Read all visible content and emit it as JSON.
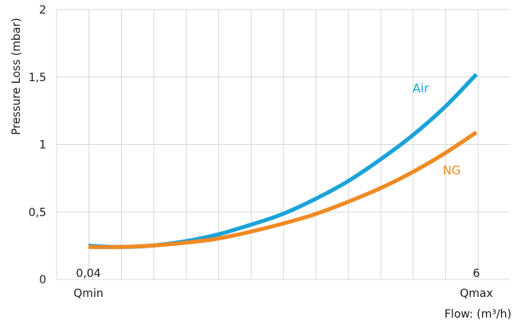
{
  "chart_data": {
    "type": "line",
    "title": "",
    "ylabel": "Pressure Loss (mbar)",
    "xlabel": "Flow: (m³/h)",
    "ylim": [
      0,
      2
    ],
    "yticks": [
      {
        "value": 0,
        "label": "0"
      },
      {
        "value": 0.5,
        "label": "0,5"
      },
      {
        "value": 1,
        "label": "1"
      },
      {
        "value": 1.5,
        "label": "1,5"
      },
      {
        "value": 2,
        "label": "2"
      }
    ],
    "xlim": [
      0.04,
      6
    ],
    "xticks": [
      {
        "value": 0.04,
        "label": "0,04",
        "sublabel": "Qmin"
      },
      {
        "value": 6,
        "label": "6",
        "sublabel": "Qmax"
      }
    ],
    "grid": true,
    "series": [
      {
        "name": "Air",
        "color": "#1aa3d9",
        "x": [
          0.04,
          0.5,
          1,
          1.5,
          2,
          2.5,
          3,
          3.5,
          4,
          4.5,
          5,
          5.5,
          6
        ],
        "y": [
          0.25,
          0.24,
          0.25,
          0.28,
          0.33,
          0.4,
          0.48,
          0.59,
          0.72,
          0.88,
          1.06,
          1.27,
          1.52
        ]
      },
      {
        "name": "NG",
        "color": "#f08a24",
        "x": [
          0.04,
          0.5,
          1,
          1.5,
          2,
          2.5,
          3,
          3.5,
          4,
          4.5,
          5,
          5.5,
          6
        ],
        "y": [
          0.24,
          0.24,
          0.25,
          0.27,
          0.3,
          0.35,
          0.41,
          0.48,
          0.57,
          0.67,
          0.79,
          0.93,
          1.09
        ]
      }
    ]
  }
}
